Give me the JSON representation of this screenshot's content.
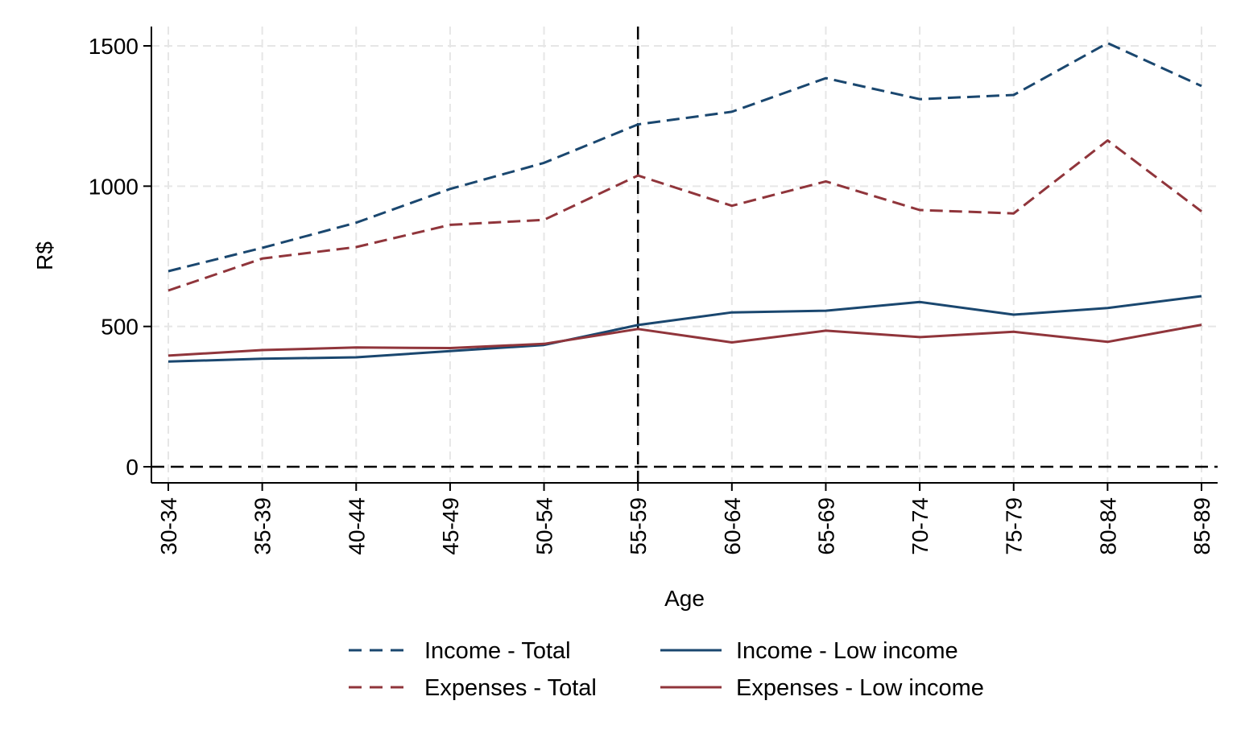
{
  "chart_data": {
    "type": "line",
    "categories": [
      "30-34",
      "35-39",
      "40-44",
      "45-49",
      "50-54",
      "55-59",
      "60-64",
      "65-69",
      "70-74",
      "75-79",
      "80-84",
      "85-89"
    ],
    "series": [
      {
        "name": "Income - Total",
        "color": "#1a476f",
        "style": "dashed",
        "values": [
          697,
          780,
          870,
          990,
          1083,
          1220,
          1265,
          1385,
          1310,
          1325,
          1510,
          1357
        ]
      },
      {
        "name": "Expenses - Total",
        "color": "#90353b",
        "style": "dashed",
        "values": [
          628,
          742,
          783,
          862,
          880,
          1038,
          930,
          1017,
          915,
          903,
          1163,
          910
        ]
      },
      {
        "name": "Income - Low income",
        "color": "#1a476f",
        "style": "solid",
        "values": [
          375,
          385,
          390,
          412,
          434,
          505,
          550,
          556,
          587,
          542,
          566,
          608
        ]
      },
      {
        "name": "Expenses - Low income",
        "color": "#90353b",
        "style": "solid",
        "values": [
          396,
          416,
          425,
          423,
          438,
          491,
          443,
          485,
          462,
          481,
          445,
          506
        ]
      }
    ],
    "xlabel": "Age",
    "ylabel": "R$",
    "ylim": [
      -60,
      1560
    ],
    "yticks": [
      0,
      500,
      1000,
      1500
    ],
    "reference_lines": {
      "vertical_at": "55-59",
      "horizontal_at": 0
    },
    "grid": true,
    "legend": "bottom, two columns"
  }
}
